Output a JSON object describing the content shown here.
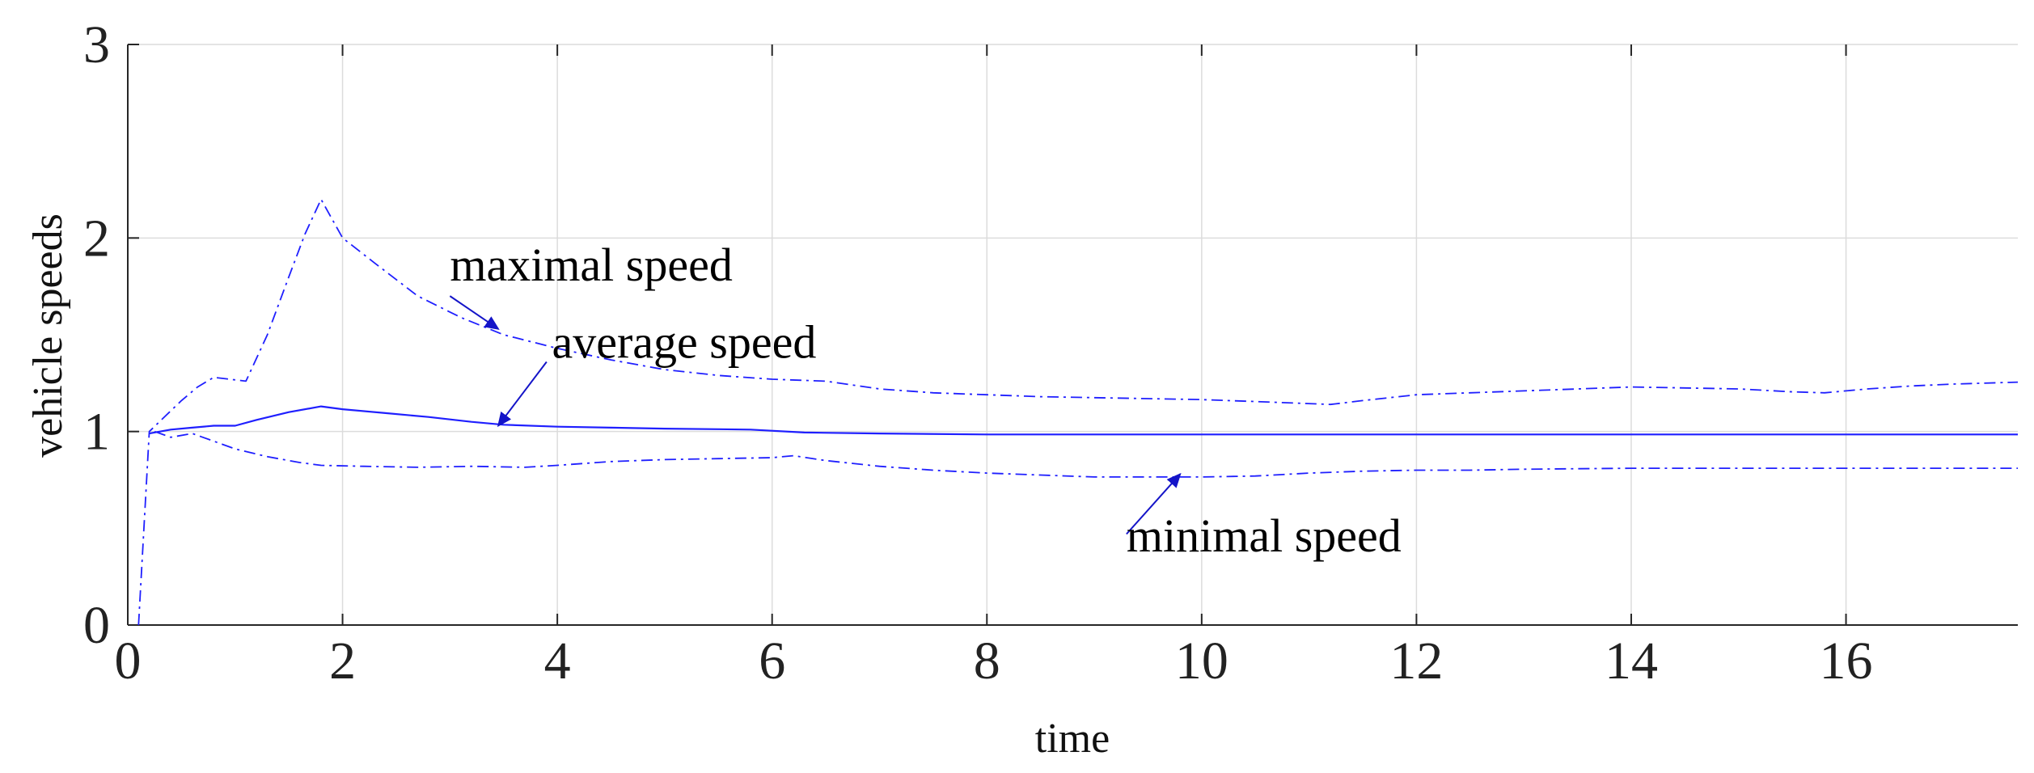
{
  "chart_data": {
    "type": "line",
    "title": "",
    "xlabel": "time",
    "ylabel": "vehicle speeds",
    "xlim": [
      0,
      17.6
    ],
    "ylim": [
      0,
      3
    ],
    "grid": true,
    "x_ticks": [
      0,
      2,
      4,
      6,
      8,
      10,
      12,
      14,
      16
    ],
    "x_tick_labels": [
      "0",
      "2",
      "4",
      "6",
      "8",
      "10",
      "12",
      "14",
      "16"
    ],
    "y_ticks": [
      0,
      1,
      2,
      3
    ],
    "y_tick_labels": [
      "0",
      "1",
      "2",
      "3"
    ],
    "series": [
      {
        "name": "maximal speed",
        "style": "dashdot",
        "color": "#1f1fff",
        "x": [
          0.1,
          0.2,
          0.35,
          0.5,
          0.65,
          0.8,
          0.95,
          1.1,
          1.3,
          1.5,
          1.65,
          1.8,
          2.0,
          2.3,
          2.7,
          3.1,
          3.5,
          4.0,
          4.5,
          5.0,
          5.5,
          6.0,
          6.5,
          7.0,
          7.5,
          8.0,
          8.5,
          9.0,
          9.5,
          10.0,
          10.5,
          11.2,
          11.5,
          12.0,
          12.5,
          13.0,
          13.5,
          14.0,
          14.5,
          15.0,
          15.5,
          15.8,
          16.2,
          16.6,
          17.0,
          17.6
        ],
        "values": [
          0.0,
          1.0,
          1.08,
          1.16,
          1.23,
          1.28,
          1.27,
          1.26,
          1.5,
          1.8,
          2.02,
          2.2,
          2.0,
          1.87,
          1.7,
          1.59,
          1.5,
          1.43,
          1.37,
          1.32,
          1.29,
          1.27,
          1.26,
          1.22,
          1.2,
          1.19,
          1.18,
          1.175,
          1.17,
          1.165,
          1.155,
          1.14,
          1.16,
          1.19,
          1.2,
          1.21,
          1.22,
          1.23,
          1.225,
          1.22,
          1.205,
          1.2,
          1.22,
          1.235,
          1.245,
          1.255
        ]
      },
      {
        "name": "average speed",
        "style": "solid",
        "color": "#1f1fff",
        "x": [
          0.2,
          0.4,
          0.6,
          0.8,
          1.0,
          1.2,
          1.5,
          1.8,
          2.0,
          2.4,
          2.8,
          3.2,
          3.5,
          4.0,
          4.5,
          5.0,
          5.5,
          5.8,
          6.3,
          7.0,
          8.0,
          9.0,
          10.0,
          11.0,
          12.0,
          13.0,
          14.0,
          15.0,
          16.0,
          17.0,
          17.6
        ],
        "values": [
          0.99,
          1.01,
          1.02,
          1.03,
          1.03,
          1.06,
          1.1,
          1.13,
          1.115,
          1.095,
          1.075,
          1.05,
          1.035,
          1.025,
          1.02,
          1.015,
          1.012,
          1.01,
          0.995,
          0.99,
          0.985,
          0.985,
          0.985,
          0.985,
          0.985,
          0.985,
          0.985,
          0.985,
          0.985,
          0.985,
          0.985
        ]
      },
      {
        "name": "minimal speed",
        "style": "dashdot",
        "color": "#1f1fff",
        "x": [
          0.25,
          0.4,
          0.6,
          0.8,
          1.0,
          1.3,
          1.6,
          1.8,
          2.2,
          2.7,
          3.2,
          3.7,
          4.0,
          4.5,
          5.0,
          5.5,
          6.0,
          6.2,
          6.5,
          7.0,
          7.5,
          8.0,
          8.5,
          9.0,
          9.5,
          10.0,
          10.5,
          11.0,
          11.5,
          12.0,
          12.5,
          13.0,
          14.0,
          15.0,
          16.0,
          17.0,
          17.6
        ],
        "values": [
          1.0,
          0.97,
          0.99,
          0.95,
          0.91,
          0.87,
          0.84,
          0.825,
          0.82,
          0.815,
          0.82,
          0.815,
          0.825,
          0.845,
          0.855,
          0.86,
          0.865,
          0.875,
          0.85,
          0.82,
          0.8,
          0.785,
          0.775,
          0.765,
          0.765,
          0.765,
          0.77,
          0.785,
          0.795,
          0.8,
          0.8,
          0.805,
          0.81,
          0.81,
          0.81,
          0.81,
          0.81
        ]
      }
    ],
    "annotations": [
      {
        "text": "maximal speed",
        "text_x": 3.0,
        "text_y": 1.78,
        "arrow_from": [
          3.0,
          1.7
        ],
        "arrow_to": [
          3.45,
          1.53
        ]
      },
      {
        "text": "average speed",
        "text_x": 3.95,
        "text_y": 1.38,
        "arrow_from": [
          3.9,
          1.36
        ],
        "arrow_to": [
          3.45,
          1.03
        ]
      },
      {
        "text": "minimal speed",
        "text_x": 9.3,
        "text_y": 0.38,
        "arrow_from": [
          9.3,
          0.47
        ],
        "arrow_to": [
          9.8,
          0.78
        ]
      }
    ]
  }
}
